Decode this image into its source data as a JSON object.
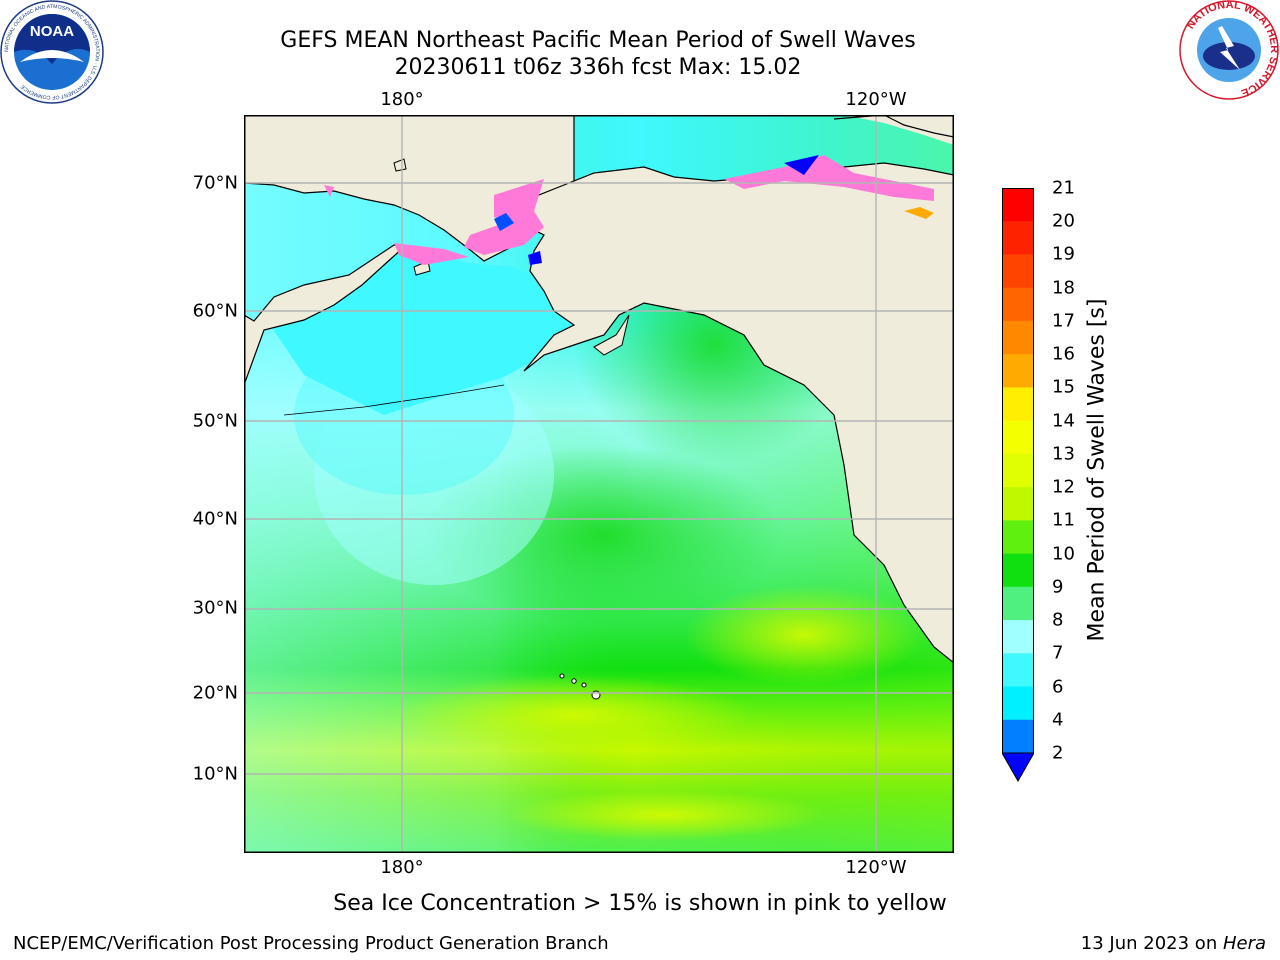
{
  "header": {
    "title_line1": "GEFS MEAN Northeast Pacific Mean Period of Swell Waves",
    "title_line2": "20230611 t06z 336h fcst   Max: 15.02"
  },
  "logos": {
    "left": "NOAA",
    "left_ring_text": "NATIONAL OCEANIC AND ATMOSPHERIC ADMINISTRATION · U.S. DEPARTMENT OF COMMERCE",
    "right_ring_text": "NATIONAL WEATHER SERVICE"
  },
  "map": {
    "lat_labels": [
      "70°N",
      "60°N",
      "50°N",
      "40°N",
      "30°N",
      "20°N",
      "10°N"
    ],
    "lon_labels_top": [
      "180°",
      "120°W"
    ],
    "lon_labels_bottom": [
      "180°",
      "120°W"
    ],
    "colors": {
      "land": "#efecdc",
      "coast": "#000000",
      "grid": "#b4b4b4",
      "ice_pink": "#ff7ad8"
    }
  },
  "colorbar": {
    "label": "Mean Period of Swell Waves [s]",
    "ticks": [
      "2",
      "4",
      "6",
      "7",
      "8",
      "9",
      "10",
      "11",
      "12",
      "13",
      "14",
      "15",
      "16",
      "17",
      "18",
      "19",
      "20",
      "21"
    ],
    "colors": [
      "#0050ff",
      "#00e0ff",
      "#40f8ff",
      "#a0ffff",
      "#50f080",
      "#10e010",
      "#60f010",
      "#c8f800",
      "#f0ff10",
      "#ffee00",
      "#ffcc00",
      "#ffaa00",
      "#ff8800",
      "#ff6600",
      "#ff4400",
      "#ff1a00",
      "#0000ff"
    ],
    "extend_color": "#0000ff"
  },
  "note": "Sea Ice Concentration > 15% is shown in pink to yellow",
  "footer": {
    "left": "NCEP/EMC/Verification Post Processing Product Generation Branch",
    "date": "13 Jun 2023 on ",
    "host": "Hera"
  }
}
